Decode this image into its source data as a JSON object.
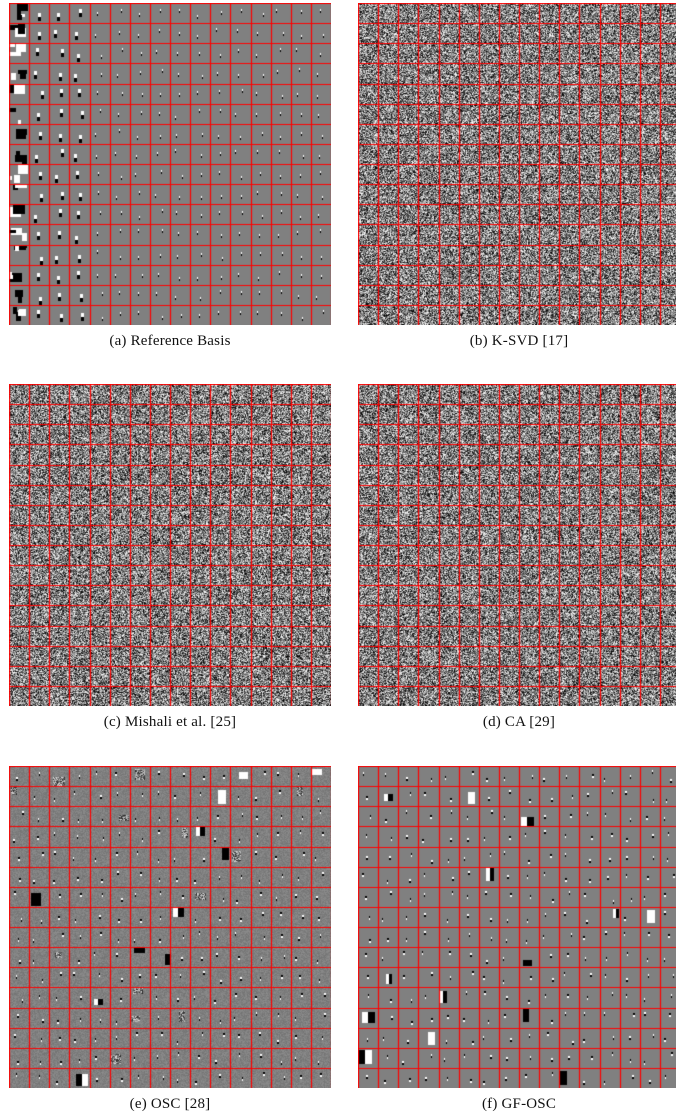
{
  "figure": {
    "panels": [
      {
        "id": "a",
        "caption": "(a) Reference Basis",
        "kind": "reference"
      },
      {
        "id": "b",
        "caption": "(b) K-SVD [17]",
        "kind": "noise"
      },
      {
        "id": "c",
        "caption": "(c) Mishali et al. [25]",
        "kind": "noise"
      },
      {
        "id": "d",
        "caption": "(d) CA [29]",
        "kind": "noise"
      },
      {
        "id": "e",
        "caption": "(e) OSC [28]",
        "kind": "sparse-noisy"
      },
      {
        "id": "f",
        "caption": "(f) GF-OSC",
        "kind": "sparse-clean"
      }
    ],
    "grid_cells_per_side": 16,
    "colors": {
      "grid_line": "#ff0000",
      "background_gray": "#808080",
      "caption_text": "#111111"
    }
  }
}
